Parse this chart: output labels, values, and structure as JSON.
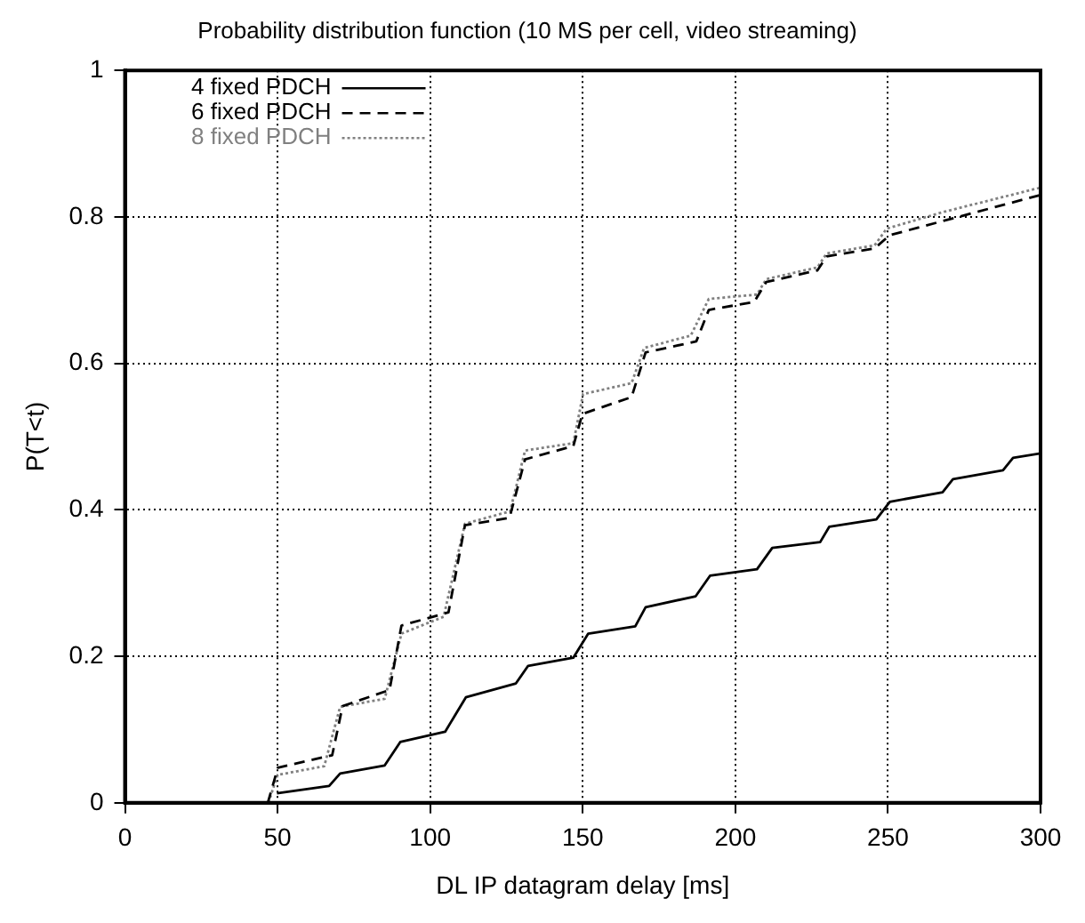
{
  "chart_data": {
    "type": "line",
    "title": "Probability distribution function (10 MS per cell, video streaming)",
    "xlabel": "DL IP datagram delay [ms]",
    "ylabel": "P(T<t)",
    "xlim": [
      0,
      300
    ],
    "xticks": [
      0,
      50,
      100,
      150,
      200,
      250,
      300
    ],
    "ylim": [
      0,
      1
    ],
    "yticks": [
      0,
      0.2,
      0.4,
      0.6,
      0.8,
      1
    ],
    "grid": true,
    "legend": "top left",
    "marker": "none",
    "series": [
      {
        "name": "4 fixed PDCH",
        "color": "#000000",
        "line_style": "solid",
        "x": [
          49.8,
          66.9,
          70.5,
          85.1,
          90.2,
          104.9,
          111.7,
          128.1,
          132.1,
          146.9,
          151.8,
          167.2,
          170.6,
          187,
          191.7,
          207.1,
          212.1,
          227.8,
          230.8,
          246.2,
          250.6,
          267.9,
          271.3,
          287.7,
          291,
          300
        ],
        "values": [
          0.013,
          0.023,
          0.04,
          0.051,
          0.083,
          0.097,
          0.144,
          0.163,
          0.187,
          0.198,
          0.231,
          0.241,
          0.267,
          0.282,
          0.31,
          0.319,
          0.348,
          0.356,
          0.377,
          0.387,
          0.411,
          0.424,
          0.442,
          0.454,
          0.471,
          0.477
        ]
      },
      {
        "name": "6 fixed PDCH",
        "color": "#000000",
        "line_style": "dashed",
        "x": [
          46.8,
          50.1,
          67.9,
          71.3,
          86.7,
          90.6,
          106,
          111.4,
          126,
          131.1,
          146.9,
          149.9,
          166,
          170.6,
          187.2,
          191.3,
          206.2,
          210.1,
          226.9,
          229.9,
          245.6,
          250.6,
          300
        ],
        "values": [
          0,
          0.048,
          0.065,
          0.132,
          0.154,
          0.242,
          0.26,
          0.379,
          0.389,
          0.469,
          0.487,
          0.531,
          0.554,
          0.615,
          0.63,
          0.673,
          0.684,
          0.711,
          0.727,
          0.746,
          0.757,
          0.775,
          0.83
        ]
      },
      {
        "name": "8 fixed PDCH",
        "color": "#808080",
        "line_style": "dotted",
        "x": [
          47,
          50,
          65.3,
          70.5,
          85.1,
          90.6,
          104.4,
          111.4,
          126.2,
          131.1,
          146.9,
          150.1,
          166,
          170.1,
          185.4,
          191.3,
          207.1,
          210.1,
          226.9,
          229.9,
          245.6,
          249.6,
          268.4,
          300
        ],
        "values": [
          0,
          0.038,
          0.05,
          0.131,
          0.142,
          0.231,
          0.254,
          0.381,
          0.398,
          0.481,
          0.491,
          0.558,
          0.573,
          0.621,
          0.638,
          0.688,
          0.694,
          0.715,
          0.731,
          0.75,
          0.761,
          0.784,
          0.807,
          0.84
        ]
      }
    ]
  }
}
